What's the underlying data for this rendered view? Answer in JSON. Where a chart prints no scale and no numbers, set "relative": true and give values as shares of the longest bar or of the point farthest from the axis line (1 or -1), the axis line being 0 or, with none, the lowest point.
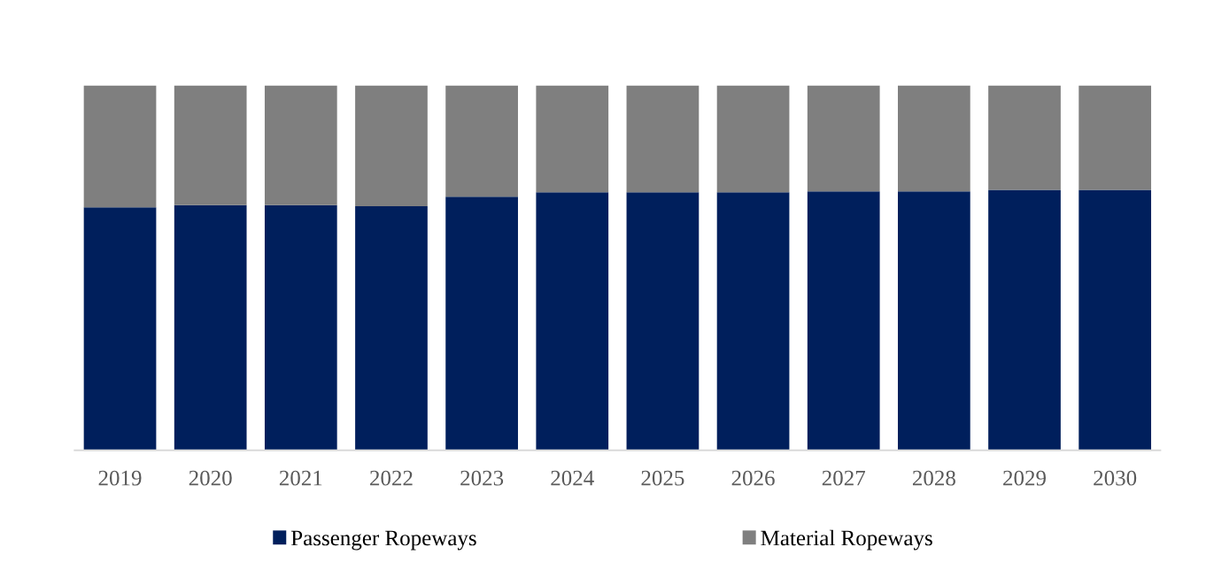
{
  "chart_data": {
    "type": "bar",
    "stacked": true,
    "relative": true,
    "legend": "bottom",
    "categories": [
      "2019",
      "2020",
      "2021",
      "2022",
      "2023",
      "2024",
      "2025",
      "2026",
      "2027",
      "2028",
      "2029",
      "2030"
    ],
    "series": [
      {
        "name": "Passenger Ropeways",
        "color": "#001f5c",
        "values": [
          0.666,
          0.672,
          0.672,
          0.669,
          0.695,
          0.707,
          0.707,
          0.707,
          0.71,
          0.71,
          0.714,
          0.714
        ]
      },
      {
        "name": "Material Ropeways",
        "color": "#7f7f7f",
        "values": [
          0.334,
          0.328,
          0.328,
          0.331,
          0.305,
          0.293,
          0.293,
          0.293,
          0.29,
          0.29,
          0.286,
          0.286
        ]
      }
    ]
  }
}
